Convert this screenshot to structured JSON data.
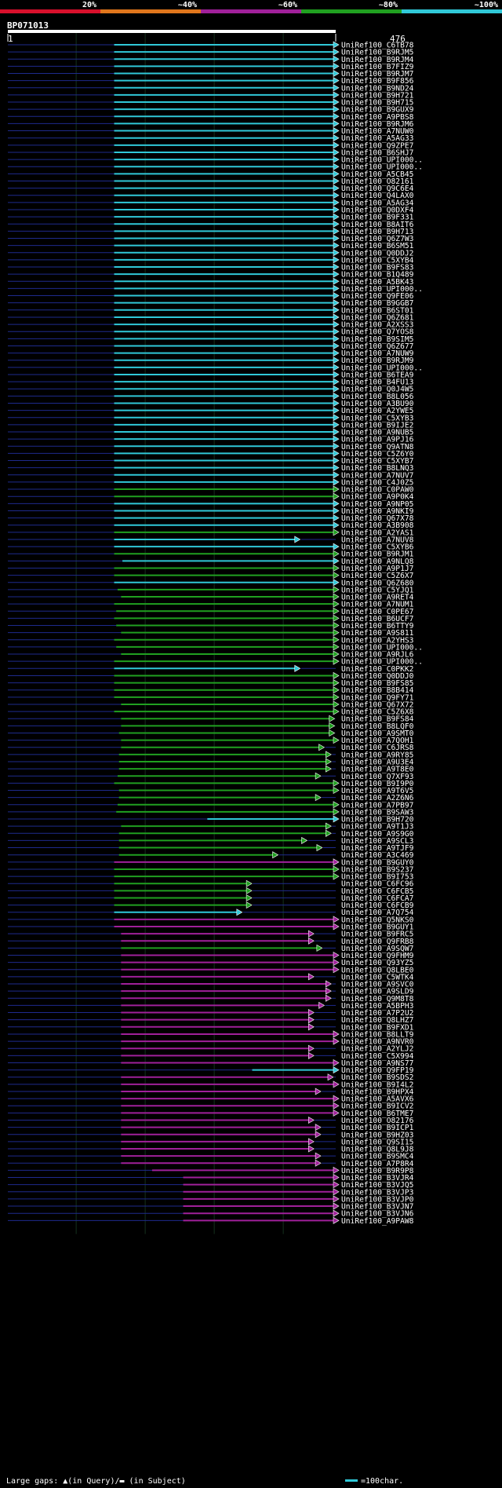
{
  "chart_data": {
    "type": "blast-alignment-overview",
    "query_name": "BP071013",
    "query_start": "1",
    "query_end": "476",
    "query_length": 476,
    "identity_legend": [
      {
        "label": "20%",
        "color": "#d8102c"
      },
      {
        "label": "~40%",
        "color": "#e0761c"
      },
      {
        "label": "~60%",
        "color": "#a0209a"
      },
      {
        "label": "~80%",
        "color": "#20a020"
      },
      {
        "label": "~100%",
        "color": "#30c8d8"
      }
    ],
    "footer": {
      "gaps_text": "Large gaps: ▲(in Query)/▬ (in Subject)",
      "scale_text": "=100char.",
      "scale_color": "#30c8d8"
    },
    "cls_colors": {
      "c": "#30c8d8",
      "g": "#20a020",
      "m": "#a0209a"
    },
    "hits": [
      {
        "name": "UniRef100_C6TB78",
        "cls": "c",
        "start": 155,
        "end": 476
      },
      {
        "name": "UniRef100_B9RJM5",
        "cls": "c",
        "start": 155,
        "end": 476
      },
      {
        "name": "UniRef100_B9RJM4",
        "cls": "c",
        "start": 155,
        "end": 476
      },
      {
        "name": "UniRef100_B7FIZ9",
        "cls": "c",
        "start": 155,
        "end": 476
      },
      {
        "name": "UniRef100_B9RJM7",
        "cls": "c",
        "start": 155,
        "end": 476
      },
      {
        "name": "UniRef100_B9F856",
        "cls": "c",
        "start": 155,
        "end": 476
      },
      {
        "name": "UniRef100_B9ND24",
        "cls": "c",
        "start": 155,
        "end": 476
      },
      {
        "name": "UniRef100_B9H721",
        "cls": "c",
        "start": 155,
        "end": 476
      },
      {
        "name": "UniRef100_B9H715",
        "cls": "c",
        "start": 155,
        "end": 476
      },
      {
        "name": "UniRef100_B9GUX9",
        "cls": "c",
        "start": 155,
        "end": 476
      },
      {
        "name": "UniRef100_A9PBS8",
        "cls": "c",
        "start": 155,
        "end": 476
      },
      {
        "name": "UniRef100_B9RJM6",
        "cls": "c",
        "start": 155,
        "end": 476
      },
      {
        "name": "UniRef100_A7NUW0",
        "cls": "c",
        "start": 155,
        "end": 476
      },
      {
        "name": "UniRef100_A5AG33",
        "cls": "c",
        "start": 155,
        "end": 476
      },
      {
        "name": "UniRef100_Q9ZPE7",
        "cls": "c",
        "start": 155,
        "end": 476
      },
      {
        "name": "UniRef100_B6SHJ7",
        "cls": "c",
        "start": 155,
        "end": 476
      },
      {
        "name": "UniRef100_UPI000..",
        "cls": "c",
        "start": 155,
        "end": 476
      },
      {
        "name": "UniRef100_UPI000..",
        "cls": "c",
        "start": 155,
        "end": 476
      },
      {
        "name": "UniRef100_A5CB45",
        "cls": "c",
        "start": 155,
        "end": 476
      },
      {
        "name": "UniRef100_O82161",
        "cls": "c",
        "start": 155,
        "end": 476
      },
      {
        "name": "UniRef100_Q9C6E4",
        "cls": "c",
        "start": 155,
        "end": 476
      },
      {
        "name": "UniRef100_Q4LAX0",
        "cls": "c",
        "start": 155,
        "end": 476
      },
      {
        "name": "UniRef100_A5AG34",
        "cls": "c",
        "start": 155,
        "end": 476
      },
      {
        "name": "UniRef100_Q0DXF4",
        "cls": "c",
        "start": 155,
        "end": 476
      },
      {
        "name": "UniRef100_B9F331",
        "cls": "c",
        "start": 155,
        "end": 476
      },
      {
        "name": "UniRef100_B8AIT6",
        "cls": "c",
        "start": 155,
        "end": 476
      },
      {
        "name": "UniRef100_B9H713",
        "cls": "c",
        "start": 155,
        "end": 476
      },
      {
        "name": "UniRef100_Q6Z7W3",
        "cls": "c",
        "start": 155,
        "end": 476
      },
      {
        "name": "UniRef100_B6SM51",
        "cls": "c",
        "start": 155,
        "end": 476
      },
      {
        "name": "UniRef100_Q0DDJ2",
        "cls": "c",
        "start": 155,
        "end": 476
      },
      {
        "name": "UniRef100_C5XYB4",
        "cls": "c",
        "start": 155,
        "end": 476
      },
      {
        "name": "UniRef100_B9FS83",
        "cls": "c",
        "start": 155,
        "end": 476
      },
      {
        "name": "UniRef100_B1Q489",
        "cls": "c",
        "start": 155,
        "end": 476
      },
      {
        "name": "UniRef100_A5BK43",
        "cls": "c",
        "start": 155,
        "end": 476
      },
      {
        "name": "UniRef100_UPI000..",
        "cls": "c",
        "start": 155,
        "end": 476
      },
      {
        "name": "UniRef100_Q9FE06",
        "cls": "c",
        "start": 155,
        "end": 476
      },
      {
        "name": "UniRef100_B9GGB7",
        "cls": "c",
        "start": 155,
        "end": 476
      },
      {
        "name": "UniRef100_B6ST01",
        "cls": "c",
        "start": 155,
        "end": 476
      },
      {
        "name": "UniRef100_Q6Z681",
        "cls": "c",
        "start": 155,
        "end": 476
      },
      {
        "name": "UniRef100_A2XSS3",
        "cls": "c",
        "start": 155,
        "end": 476
      },
      {
        "name": "UniRef100_Q7YOS8",
        "cls": "c",
        "start": 155,
        "end": 476
      },
      {
        "name": "UniRef100_B9SIM5",
        "cls": "c",
        "start": 155,
        "end": 476
      },
      {
        "name": "UniRef100_Q6Z677",
        "cls": "c",
        "start": 155,
        "end": 476
      },
      {
        "name": "UniRef100_A7NUW9",
        "cls": "c",
        "start": 155,
        "end": 476
      },
      {
        "name": "UniRef100_B9RJM9",
        "cls": "c",
        "start": 155,
        "end": 476
      },
      {
        "name": "UniRef100_UPI000..",
        "cls": "c",
        "start": 155,
        "end": 476
      },
      {
        "name": "UniRef100_B6TEA9",
        "cls": "c",
        "start": 155,
        "end": 476
      },
      {
        "name": "UniRef100_B4FU13",
        "cls": "c",
        "start": 155,
        "end": 476
      },
      {
        "name": "UniRef100_Q0J4W5",
        "cls": "c",
        "start": 155,
        "end": 476
      },
      {
        "name": "UniRef100_B8L056",
        "cls": "c",
        "start": 155,
        "end": 476
      },
      {
        "name": "UniRef100_A3BU90",
        "cls": "c",
        "start": 155,
        "end": 476
      },
      {
        "name": "UniRef100_A2YWE5",
        "cls": "c",
        "start": 155,
        "end": 476
      },
      {
        "name": "UniRef100_C5XYB3",
        "cls": "c",
        "start": 155,
        "end": 476
      },
      {
        "name": "UniRef100_B9IJE2",
        "cls": "c",
        "start": 155,
        "end": 476
      },
      {
        "name": "UniRef100_A9NUB5",
        "cls": "c",
        "start": 155,
        "end": 476
      },
      {
        "name": "UniRef100_A9PJ16",
        "cls": "c",
        "start": 155,
        "end": 476
      },
      {
        "name": "UniRef100_Q9ATN8",
        "cls": "c",
        "start": 155,
        "end": 476
      },
      {
        "name": "UniRef100_C5Z6Y0",
        "cls": "c",
        "start": 155,
        "end": 476
      },
      {
        "name": "UniRef100_C5XYB7",
        "cls": "c",
        "start": 155,
        "end": 476
      },
      {
        "name": "UniRef100_B8LNQ3",
        "cls": "c",
        "start": 155,
        "end": 476
      },
      {
        "name": "UniRef100_A7NUV7",
        "cls": "c",
        "start": 155,
        "end": 476
      },
      {
        "name": "UniRef100_C4J0Z5",
        "cls": "c",
        "start": 155,
        "end": 476
      },
      {
        "name": "UniRef100_C0PAW0",
        "cls": "g",
        "start": 155,
        "end": 476
      },
      {
        "name": "UniRef100_A9P0K4",
        "cls": "g",
        "start": 155,
        "end": 476
      },
      {
        "name": "UniRef100_A9NP05",
        "cls": "c",
        "start": 155,
        "end": 476
      },
      {
        "name": "UniRef100_A9NKI9",
        "cls": "c",
        "start": 155,
        "end": 476
      },
      {
        "name": "UniRef100_Q67X78",
        "cls": "c",
        "start": 155,
        "end": 476
      },
      {
        "name": "UniRef100_A3B908",
        "cls": "c",
        "start": 155,
        "end": 476
      },
      {
        "name": "UniRef100_A2YAS1",
        "cls": "g",
        "start": 155,
        "end": 476
      },
      {
        "name": "UniRef100_A7NUV8",
        "cls": "c",
        "start": 155,
        "end": 420
      },
      {
        "name": "UniRef100_C5XYB6",
        "cls": "c",
        "start": 155,
        "end": 476
      },
      {
        "name": "UniRef100_B9RJM1",
        "cls": "g",
        "start": 155,
        "end": 476
      },
      {
        "name": "UniRef100_A9NLQ8",
        "cls": "c",
        "start": 167,
        "end": 476
      },
      {
        "name": "UniRef100_A9P1J7",
        "cls": "g",
        "start": 155,
        "end": 476
      },
      {
        "name": "UniRef100_C5Z6X7",
        "cls": "g",
        "start": 155,
        "end": 476
      },
      {
        "name": "UniRef100_Q6Z680",
        "cls": "c",
        "start": 155,
        "end": 476
      },
      {
        "name": "UniRef100_C5YJQ1",
        "cls": "g",
        "start": 160,
        "end": 476
      },
      {
        "name": "UniRef100_A9RET4",
        "cls": "g",
        "start": 165,
        "end": 476
      },
      {
        "name": "UniRef100_A7NUM1",
        "cls": "g",
        "start": 155,
        "end": 476
      },
      {
        "name": "UniRef100_C0PE67",
        "cls": "g",
        "start": 158,
        "end": 476
      },
      {
        "name": "UniRef100_B6UCF7",
        "cls": "g",
        "start": 155,
        "end": 476
      },
      {
        "name": "UniRef100_B6TTY9",
        "cls": "g",
        "start": 158,
        "end": 476
      },
      {
        "name": "UniRef100_A9S811",
        "cls": "g",
        "start": 165,
        "end": 476
      },
      {
        "name": "UniRef100_A2YHS3",
        "cls": "g",
        "start": 155,
        "end": 476
      },
      {
        "name": "UniRef100_UPI000..",
        "cls": "g",
        "start": 158,
        "end": 476
      },
      {
        "name": "UniRef100_A9RJL6",
        "cls": "g",
        "start": 165,
        "end": 476
      },
      {
        "name": "UniRef100_UPI000..",
        "cls": "g",
        "start": 155,
        "end": 476
      },
      {
        "name": "UniRef100_C0PKK2",
        "cls": "c",
        "start": 155,
        "end": 420
      },
      {
        "name": "UniRef100_Q0DDJ0",
        "cls": "g",
        "start": 155,
        "end": 476
      },
      {
        "name": "UniRef100_B9FS85",
        "cls": "g",
        "start": 155,
        "end": 476
      },
      {
        "name": "UniRef100_B8B414",
        "cls": "g",
        "start": 155,
        "end": 476
      },
      {
        "name": "UniRef100_Q9FY71",
        "cls": "g",
        "start": 155,
        "end": 476
      },
      {
        "name": "UniRef100_Q67X72",
        "cls": "g",
        "start": 165,
        "end": 476
      },
      {
        "name": "UniRef100_C5Z6X8",
        "cls": "g",
        "start": 155,
        "end": 476
      },
      {
        "name": "UniRef100_B9FS84",
        "cls": "g",
        "start": 165,
        "end": 470
      },
      {
        "name": "UniRef100_B8LQF0",
        "cls": "g",
        "start": 165,
        "end": 470
      },
      {
        "name": "UniRef100_A9SMT0",
        "cls": "g",
        "start": 162,
        "end": 470
      },
      {
        "name": "UniRef100_A7QOH1",
        "cls": "g",
        "start": 165,
        "end": 476
      },
      {
        "name": "UniRef100_C6JRS8",
        "cls": "g",
        "start": 165,
        "end": 455
      },
      {
        "name": "UniRef100_A9RY85",
        "cls": "g",
        "start": 162,
        "end": 465
      },
      {
        "name": "UniRef100_A9U3E4",
        "cls": "g",
        "start": 162,
        "end": 465
      },
      {
        "name": "UniRef100_A9T8E0",
        "cls": "g",
        "start": 162,
        "end": 465
      },
      {
        "name": "UniRef100_Q7XF93",
        "cls": "g",
        "start": 160,
        "end": 450
      },
      {
        "name": "UniRef100_B9I9P0",
        "cls": "g",
        "start": 155,
        "end": 476
      },
      {
        "name": "UniRef100_A9T6V5",
        "cls": "g",
        "start": 162,
        "end": 476
      },
      {
        "name": "UniRef100_A2Z6N6",
        "cls": "g",
        "start": 162,
        "end": 450
      },
      {
        "name": "UniRef100_A7PB97",
        "cls": "g",
        "start": 160,
        "end": 476
      },
      {
        "name": "UniRef100_B9SAW3",
        "cls": "g",
        "start": 158,
        "end": 476
      },
      {
        "name": "UniRef100_B9H720",
        "cls": "c",
        "start": 290,
        "end": 476
      },
      {
        "name": "UniRef100_A9T1J3",
        "cls": "g",
        "start": 165,
        "end": 465
      },
      {
        "name": "UniRef100_A9S9G0",
        "cls": "g",
        "start": 162,
        "end": 465
      },
      {
        "name": "UniRef100_A9SCL3",
        "cls": "g",
        "start": 162,
        "end": 430
      },
      {
        "name": "UniRef100_A9TJF9",
        "cls": "g",
        "start": 162,
        "end": 452
      },
      {
        "name": "UniRef100_A3C469",
        "cls": "g",
        "start": 162,
        "end": 388
      },
      {
        "name": "UniRef100_B9GUY0",
        "cls": "m",
        "start": 155,
        "end": 476
      },
      {
        "name": "UniRef100_B9S237",
        "cls": "g",
        "start": 155,
        "end": 476
      },
      {
        "name": "UniRef100_B9I753",
        "cls": "g",
        "start": 155,
        "end": 476
      },
      {
        "name": "UniRef100_C6FC96",
        "cls": "g",
        "start": 155,
        "end": 350
      },
      {
        "name": "UniRef100_C6FCB5",
        "cls": "g",
        "start": 155,
        "end": 350
      },
      {
        "name": "UniRef100_C6FCA7",
        "cls": "g",
        "start": 155,
        "end": 350
      },
      {
        "name": "UniRef100_C6FCB9",
        "cls": "g",
        "start": 155,
        "end": 350
      },
      {
        "name": "UniRef100_A7Q754",
        "cls": "c",
        "start": 155,
        "end": 336
      },
      {
        "name": "UniRef100_Q5NKS0",
        "cls": "m",
        "start": 155,
        "end": 476
      },
      {
        "name": "UniRef100_B9GUY1",
        "cls": "m",
        "start": 155,
        "end": 476
      },
      {
        "name": "UniRef100_B9FRC5",
        "cls": "m",
        "start": 165,
        "end": 440
      },
      {
        "name": "UniRef100_Q9FRB8",
        "cls": "m",
        "start": 165,
        "end": 440
      },
      {
        "name": "UniRef100_A9SQW7",
        "cls": "g",
        "start": 165,
        "end": 452
      },
      {
        "name": "UniRef100_Q9FHM9",
        "cls": "m",
        "start": 165,
        "end": 476
      },
      {
        "name": "UniRef100_Q93YZ5",
        "cls": "m",
        "start": 165,
        "end": 476
      },
      {
        "name": "UniRef100_Q8LBE0",
        "cls": "m",
        "start": 165,
        "end": 476
      },
      {
        "name": "UniRef100_C5WTK4",
        "cls": "m",
        "start": 165,
        "end": 440
      },
      {
        "name": "UniRef100_A9SVC0",
        "cls": "m",
        "start": 165,
        "end": 465
      },
      {
        "name": "UniRef100_A9SLD9",
        "cls": "m",
        "start": 165,
        "end": 465
      },
      {
        "name": "UniRef100_Q9M8T8",
        "cls": "m",
        "start": 165,
        "end": 465
      },
      {
        "name": "UniRef100_A5BPH3",
        "cls": "m",
        "start": 165,
        "end": 455
      },
      {
        "name": "UniRef100_A7P2U2",
        "cls": "m",
        "start": 165,
        "end": 440
      },
      {
        "name": "UniRef100_Q8LHZ7",
        "cls": "m",
        "start": 165,
        "end": 440
      },
      {
        "name": "UniRef100_B9FXD1",
        "cls": "m",
        "start": 165,
        "end": 440
      },
      {
        "name": "UniRef100_B8LLT9",
        "cls": "m",
        "start": 165,
        "end": 476
      },
      {
        "name": "UniRef100_A9NVR0",
        "cls": "m",
        "start": 165,
        "end": 476
      },
      {
        "name": "UniRef100_A2YLJ2",
        "cls": "m",
        "start": 165,
        "end": 440
      },
      {
        "name": "UniRef100_C5X994",
        "cls": "m",
        "start": 165,
        "end": 440
      },
      {
        "name": "UniRef100_A9NS77",
        "cls": "m",
        "start": 165,
        "end": 476
      },
      {
        "name": "UniRef100_Q9FP19",
        "cls": "c",
        "start": 355,
        "end": 476
      },
      {
        "name": "UniRef100_B9SDS2",
        "cls": "m",
        "start": 165,
        "end": 468
      },
      {
        "name": "UniRef100_B9I4L2",
        "cls": "m",
        "start": 165,
        "end": 476
      },
      {
        "name": "UniRef100_B9HPX4",
        "cls": "m",
        "start": 165,
        "end": 450
      },
      {
        "name": "UniRef100_A5AVX6",
        "cls": "m",
        "start": 165,
        "end": 476
      },
      {
        "name": "UniRef100_B9ICV2",
        "cls": "m",
        "start": 165,
        "end": 476
      },
      {
        "name": "UniRef100_B6TME7",
        "cls": "m",
        "start": 165,
        "end": 476
      },
      {
        "name": "UniRef100_O82176",
        "cls": "m",
        "start": 165,
        "end": 440
      },
      {
        "name": "UniRef100_B9ICP1",
        "cls": "m",
        "start": 165,
        "end": 450
      },
      {
        "name": "UniRef100_B9HZ03",
        "cls": "m",
        "start": 165,
        "end": 450
      },
      {
        "name": "UniRef100_Q9SI15",
        "cls": "m",
        "start": 165,
        "end": 440
      },
      {
        "name": "UniRef100_Q8L9J8",
        "cls": "m",
        "start": 165,
        "end": 440
      },
      {
        "name": "UniRef100_B9SMC4",
        "cls": "m",
        "start": 165,
        "end": 450
      },
      {
        "name": "UniRef100_A7P8R4",
        "cls": "m",
        "start": 165,
        "end": 450
      },
      {
        "name": "UniRef100_B9R9P8",
        "cls": "m",
        "start": 210,
        "end": 476
      },
      {
        "name": "UniRef100_B3VJR4",
        "cls": "m",
        "start": 255,
        "end": 476
      },
      {
        "name": "UniRef100_B3VJQ5",
        "cls": "m",
        "start": 255,
        "end": 476
      },
      {
        "name": "UniRef100_B3VJP3",
        "cls": "m",
        "start": 255,
        "end": 476
      },
      {
        "name": "UniRef100_B3VJP0",
        "cls": "m",
        "start": 255,
        "end": 476
      },
      {
        "name": "UniRef100_B3VJN7",
        "cls": "m",
        "start": 255,
        "end": 476
      },
      {
        "name": "UniRef100_B3VJN6",
        "cls": "m",
        "start": 255,
        "end": 476
      },
      {
        "name": "UniRef100_A9PAW8",
        "cls": "m",
        "start": 255,
        "end": 476
      }
    ]
  }
}
